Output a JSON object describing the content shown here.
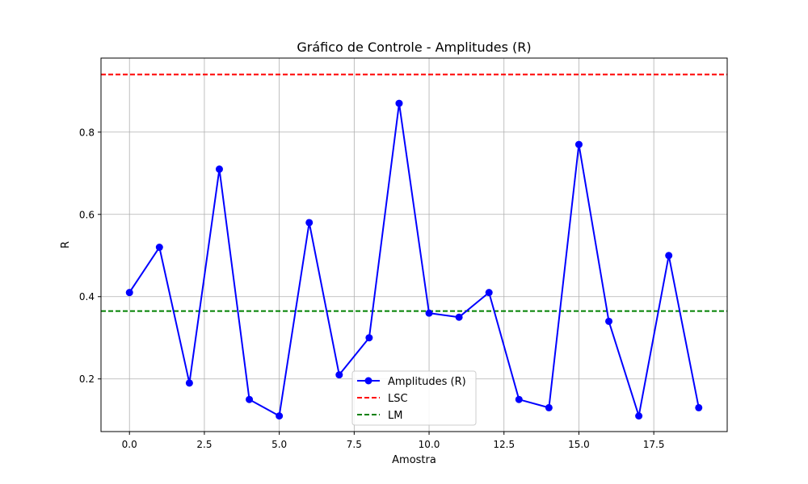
{
  "chart_data": {
    "type": "line",
    "title": "Gráfico de Controle - Amplitudes (R)",
    "xlabel": "Amostra",
    "ylabel": "R",
    "xlim": [
      -0.95,
      19.95
    ],
    "ylim": [
      0.072,
      0.98
    ],
    "xticks": [
      0.0,
      2.5,
      5.0,
      7.5,
      10.0,
      12.5,
      15.0,
      17.5
    ],
    "xtick_labels": [
      "0.0",
      "2.5",
      "5.0",
      "7.5",
      "10.0",
      "12.5",
      "15.0",
      "17.5"
    ],
    "yticks": [
      0.2,
      0.4,
      0.6,
      0.8
    ],
    "ytick_labels": [
      "0.2",
      "0.4",
      "0.6",
      "0.8"
    ],
    "grid": true,
    "legend_position": "bottom-center",
    "series": [
      {
        "name": "Amplitudes (R)",
        "style": "solid-with-markers",
        "color": "#0000ff",
        "x": [
          0,
          1,
          2,
          3,
          4,
          5,
          6,
          7,
          8,
          9,
          10,
          11,
          12,
          13,
          14,
          15,
          16,
          17,
          18,
          19
        ],
        "values": [
          0.41,
          0.52,
          0.19,
          0.71,
          0.15,
          0.11,
          0.58,
          0.21,
          0.3,
          0.87,
          0.36,
          0.35,
          0.41,
          0.15,
          0.13,
          0.77,
          0.34,
          0.11,
          0.5,
          0.13
        ]
      },
      {
        "name": "LSC",
        "style": "dashed",
        "color": "#ff0000",
        "value": 0.94
      },
      {
        "name": "LM",
        "style": "dashed",
        "color": "#008000",
        "value": 0.365
      }
    ]
  }
}
